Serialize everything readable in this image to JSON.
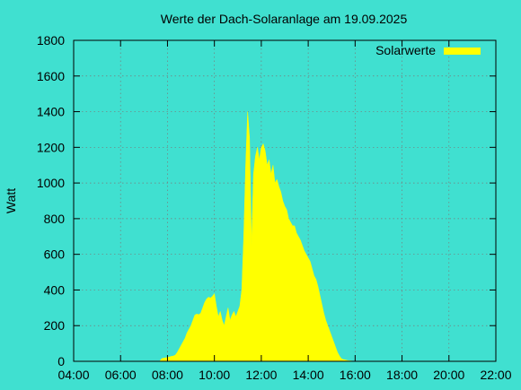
{
  "colors": {
    "background": "#40e0d0",
    "series": "#ffff00",
    "axis": "#000000"
  },
  "chart_data": {
    "type": "area",
    "title": "Werte der Dach-Solaranlage am 19.09.2025",
    "xlabel": "",
    "ylabel": "Watt",
    "xlim": [
      240,
      1320
    ],
    "ylim": [
      0,
      1800
    ],
    "grid": true,
    "legend_position": "top-right",
    "x_tick_values": [
      240,
      360,
      480,
      600,
      720,
      840,
      960,
      1080,
      1200,
      1320
    ],
    "x_tick_labels": [
      "04:00",
      "06:00",
      "08:00",
      "10:00",
      "12:00",
      "14:00",
      "16:00",
      "18:00",
      "20:00",
      "22:00"
    ],
    "y_tick_values": [
      0,
      200,
      400,
      600,
      800,
      1000,
      1200,
      1400,
      1600,
      1800
    ],
    "y_tick_labels": [
      "0",
      "200",
      "400",
      "600",
      "800",
      "1000",
      "1200",
      "1400",
      "1600",
      "1800"
    ],
    "series": [
      {
        "name": "Solarwerte",
        "color": "#ffff00",
        "x_unit": "minutes after midnight",
        "x": [
          460,
          465,
          470,
          475,
          480,
          485,
          490,
          495,
          500,
          505,
          510,
          515,
          520,
          525,
          530,
          535,
          540,
          545,
          550,
          555,
          560,
          565,
          570,
          575,
          580,
          585,
          590,
          595,
          600,
          605,
          610,
          615,
          620,
          625,
          630,
          635,
          640,
          645,
          650,
          655,
          660,
          665,
          670,
          675,
          680,
          685,
          690,
          695,
          700,
          705,
          710,
          715,
          720,
          725,
          730,
          735,
          740,
          745,
          750,
          755,
          760,
          765,
          770,
          775,
          780,
          785,
          790,
          795,
          800,
          805,
          810,
          815,
          820,
          825,
          830,
          835,
          840,
          845,
          850,
          855,
          860,
          865,
          870,
          875,
          880,
          885,
          890,
          895,
          900,
          905,
          910,
          915,
          920,
          925,
          930,
          935,
          940,
          945,
          950,
          955,
          960,
          965,
          970,
          975,
          980,
          985,
          990,
          995,
          1000,
          1005,
          1010,
          1015,
          1020,
          1025,
          1030,
          1035,
          1040,
          1045,
          1050,
          1055,
          1060,
          1065,
          1070,
          1075,
          1080,
          1085,
          1090,
          1095,
          1100,
          1105
        ],
        "values": [
          0,
          15,
          18,
          20,
          22,
          25,
          28,
          30,
          35,
          50,
          70,
          90,
          110,
          130,
          160,
          180,
          200,
          230,
          260,
          265,
          262,
          270,
          300,
          330,
          350,
          360,
          355,
          365,
          380,
          310,
          250,
          280,
          230,
          200,
          250,
          300,
          230,
          260,
          280,
          250,
          280,
          310,
          400,
          700,
          1100,
          1400,
          1250,
          650,
          1050,
          1150,
          1200,
          1130,
          1200,
          1220,
          1180,
          1100,
          1130,
          1050,
          1100,
          1000,
          1020,
          980,
          950,
          900,
          870,
          850,
          800,
          780,
          760,
          760,
          720,
          700,
          680,
          650,
          620,
          600,
          580,
          560,
          520,
          480,
          460,
          420,
          370,
          320,
          270,
          230,
          200,
          170,
          140,
          110,
          80,
          50,
          30,
          15,
          10,
          8,
          5,
          3,
          2,
          1,
          0,
          0,
          0,
          0,
          0,
          0,
          0,
          0,
          0,
          0,
          0,
          0,
          0,
          0,
          0,
          0,
          0,
          0,
          0,
          0,
          0,
          0,
          0,
          0,
          0,
          0,
          0,
          0,
          0,
          0
        ]
      }
    ]
  }
}
